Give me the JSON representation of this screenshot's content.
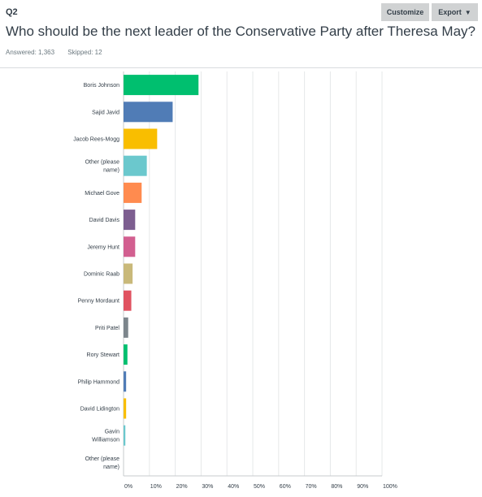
{
  "question": {
    "number": "Q2",
    "title": "Who should be the next leader of the Conservative Party after Theresa May?"
  },
  "toolbar": {
    "customize_label": "Customize",
    "export_label": "Export",
    "export_icon": "caret-down-icon"
  },
  "stats": {
    "answered": "Answered: 1,363",
    "skipped": "Skipped: 12"
  },
  "chart_data": {
    "type": "bar",
    "orientation": "horizontal",
    "categories": [
      [
        "Boris Johnson"
      ],
      [
        "Sajid Javid"
      ],
      [
        "Jacob Rees-Mogg"
      ],
      [
        "Other (please",
        "name)"
      ],
      [
        "Michael Gove"
      ],
      [
        "David Davis"
      ],
      [
        "Jeremy Hunt"
      ],
      [
        "Dominic Raab"
      ],
      [
        "Penny Mordaunt"
      ],
      [
        "Priti Patel"
      ],
      [
        "Rory Stewart"
      ],
      [
        "Philip Hammond"
      ],
      [
        "David Lidington"
      ],
      [
        "Gavin",
        "Williamson"
      ],
      [
        "Other (please",
        "name)"
      ]
    ],
    "values": [
      29,
      19,
      13,
      9,
      7,
      4.5,
      4.5,
      3.5,
      3,
      1.8,
      1.5,
      1,
      1,
      0.7,
      0
    ],
    "colors": [
      "#00bf6f",
      "#507cb6",
      "#f9be00",
      "#6bc8cd",
      "#ff8b4f",
      "#7d5e90",
      "#d25f90",
      "#c9b97a",
      "#e05260",
      "#7d868c",
      "#00bf6f",
      "#507cb6",
      "#f9be00",
      "#6bc8cd",
      "#ff8b4f"
    ],
    "xticks": [
      "0%",
      "10%",
      "20%",
      "30%",
      "40%",
      "50%",
      "60%",
      "70%",
      "80%",
      "90%",
      "100%"
    ],
    "xlim": [
      0,
      100
    ],
    "grid": true
  }
}
